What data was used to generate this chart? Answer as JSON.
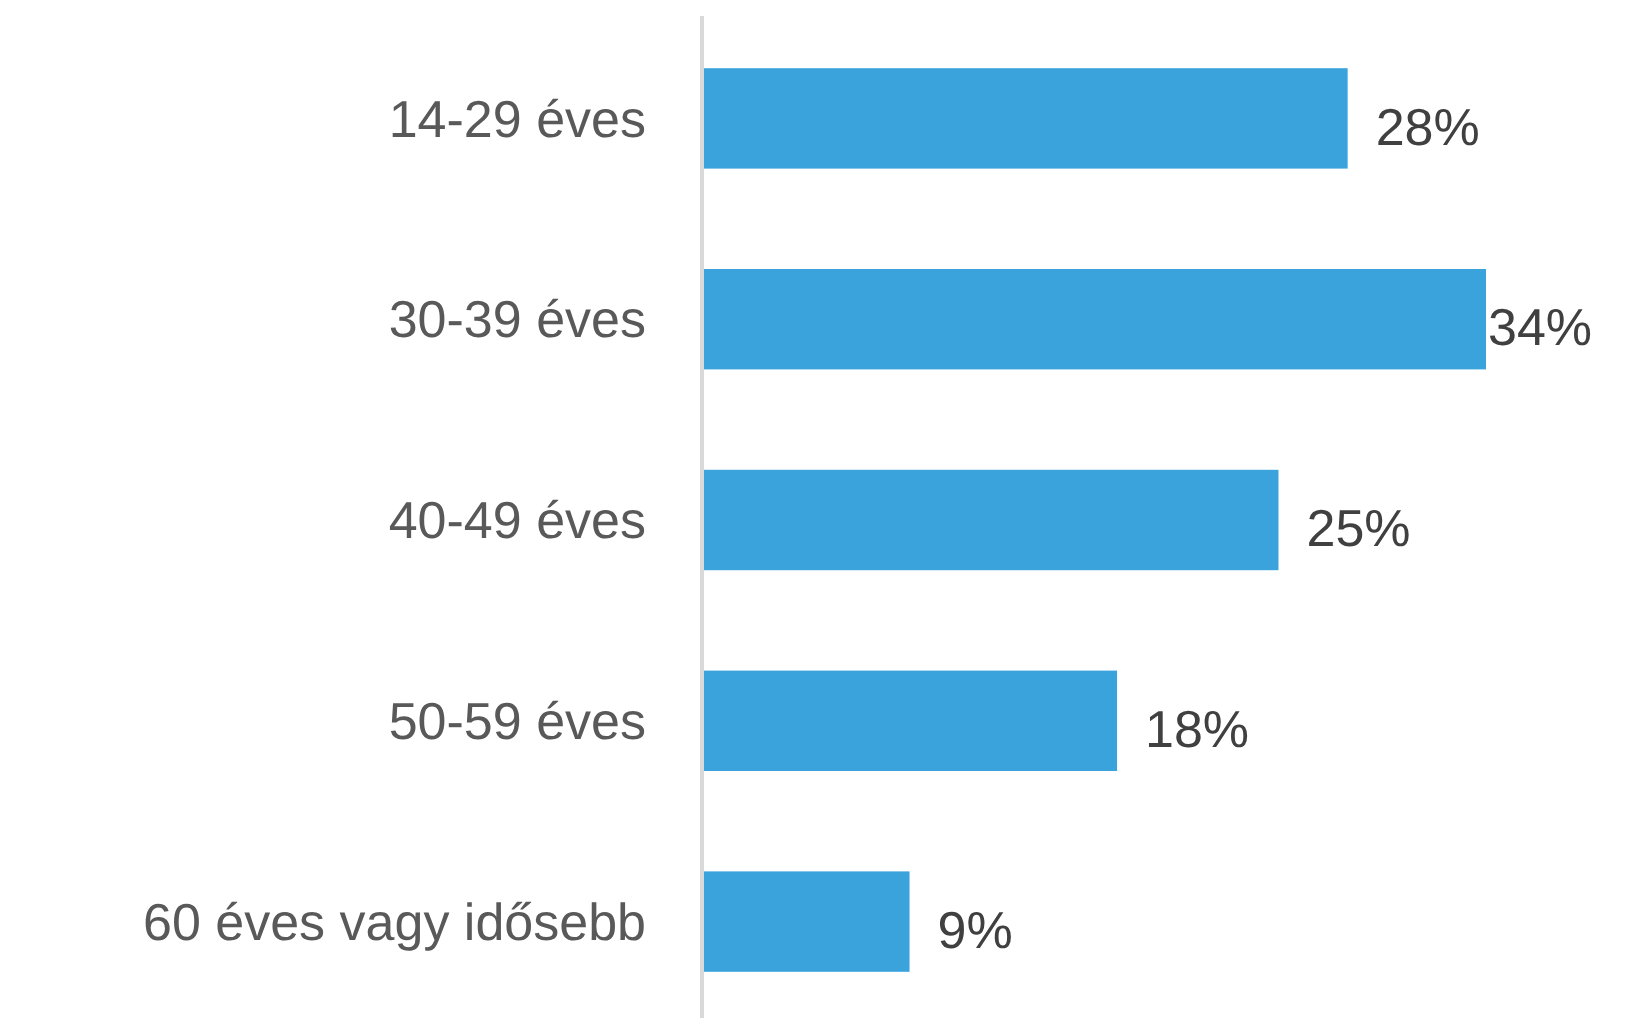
{
  "chart_data": {
    "type": "bar",
    "orientation": "horizontal",
    "categories": [
      "14-29 éves",
      "30-39 éves",
      "40-49 éves",
      "50-59 éves",
      "60 éves vagy idősebb"
    ],
    "values": [
      28,
      34,
      25,
      18,
      9
    ],
    "value_labels": [
      "28%",
      "34%",
      "25%",
      "18%",
      "9%"
    ],
    "color": "#3ba3dc"
  }
}
